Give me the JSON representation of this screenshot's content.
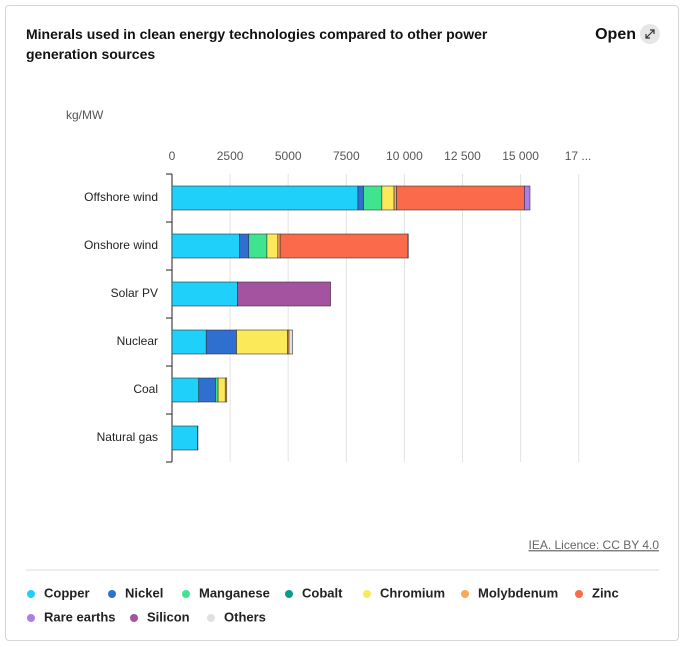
{
  "chart_data": {
    "type": "stacked-barh",
    "title": "Minerals used in clean energy technologies compared to other power generation sources",
    "y_axis_label": "kg/MW",
    "source": "IEA. Licence: CC BY 4.0",
    "categories": [
      "Offshore wind",
      "Onshore wind",
      "Solar PV",
      "Nuclear",
      "Coal",
      "Natural gas"
    ],
    "series": [
      {
        "name": "Copper",
        "color": "#1fd0fb",
        "values": [
          8000,
          2900,
          2822,
          1473,
          1150,
          1100
        ]
      },
      {
        "name": "Nickel",
        "color": "#2f6fcf",
        "values": [
          240,
          404,
          1,
          1297,
          721,
          16
        ]
      },
      {
        "name": "Manganese",
        "color": "#3ee58e",
        "values": [
          790,
          780,
          0,
          5,
          112,
          0
        ]
      },
      {
        "name": "Cobalt",
        "color": "#0a9b8e",
        "values": [
          0,
          0,
          0,
          0,
          0,
          0
        ]
      },
      {
        "name": "Chromium",
        "color": "#fbe95a",
        "values": [
          525,
          470,
          0,
          2190,
          308,
          0
        ]
      },
      {
        "name": "Molybdenum",
        "color": "#fba75a",
        "values": [
          109,
          99,
          0,
          70,
          66,
          0
        ]
      },
      {
        "name": "Zinc",
        "color": "#fb6a4a",
        "values": [
          5500,
          5500,
          0,
          0,
          0,
          0
        ]
      },
      {
        "name": "Rare earths",
        "color": "#b07ce8",
        "values": [
          239,
          14,
          0,
          0,
          0,
          0
        ]
      },
      {
        "name": "Silicon",
        "color": "#a453a0",
        "values": [
          0,
          0,
          4000,
          0,
          0,
          0
        ]
      },
      {
        "name": "Others",
        "color": "#e0e0e0",
        "values": [
          0,
          0,
          0,
          150,
          0,
          0
        ]
      }
    ],
    "xlim": [
      0,
      17500
    ],
    "xticks": [
      0,
      2500,
      5000,
      7500,
      {
        "value": 10000,
        "label": "10 000"
      },
      {
        "value": 12500,
        "label": "12 500"
      },
      {
        "value": 15000,
        "label": "15 000"
      },
      {
        "value": 17500,
        "label": "17 ..."
      }
    ],
    "grid": true,
    "legend": "bottom"
  },
  "ui": {
    "open_button": "Open"
  }
}
